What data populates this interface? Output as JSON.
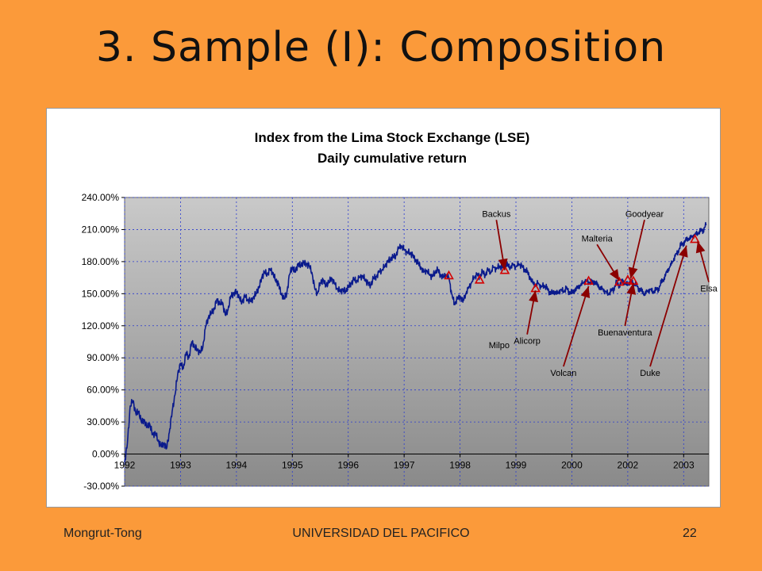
{
  "slide": {
    "title": "3. Sample (I): Composition",
    "footer_left": "Mongrut-Tong",
    "footer_center": "UNIVERSIDAD DEL PACIFICO",
    "footer_right": "22"
  },
  "colors": {
    "background": "#fb9a3a",
    "series": "#0a1a8c",
    "marker": "#d40000",
    "arrow": "#8b0000",
    "gridline": "#2a3ad0"
  },
  "chart_data": {
    "type": "line",
    "title": "Index from the Lima Stock Exchange (LSE)",
    "subtitle": "Daily cumulative return",
    "xlabel": "",
    "ylabel": "",
    "ylim": [
      -30,
      240
    ],
    "y_ticks": [
      -30,
      0,
      30,
      60,
      90,
      120,
      150,
      180,
      210,
      240
    ],
    "y_tick_labels": [
      "-30.00%",
      "0.00%",
      "30.00%",
      "60.00%",
      "90.00%",
      "120.00%",
      "150.00%",
      "180.00%",
      "210.00%",
      "240.00%"
    ],
    "x_tick_labels": [
      "1992",
      "1993",
      "1994",
      "1995",
      "1996",
      "1997",
      "1998",
      "1999",
      "2000",
      "2002",
      "2003"
    ],
    "grid": true,
    "series": [
      {
        "values": [
          [
            1992.0,
            -8
          ],
          [
            1992.05,
            10
          ],
          [
            1992.1,
            45
          ],
          [
            1992.15,
            50
          ],
          [
            1992.2,
            38
          ],
          [
            1992.25,
            40
          ],
          [
            1992.3,
            30
          ],
          [
            1992.35,
            32
          ],
          [
            1992.4,
            25
          ],
          [
            1992.45,
            28
          ],
          [
            1992.5,
            18
          ],
          [
            1992.55,
            20
          ],
          [
            1992.6,
            12
          ],
          [
            1992.65,
            8
          ],
          [
            1992.7,
            10
          ],
          [
            1992.75,
            5
          ],
          [
            1992.8,
            20
          ],
          [
            1992.85,
            40
          ],
          [
            1992.9,
            55
          ],
          [
            1992.95,
            75
          ],
          [
            1993.0,
            85
          ],
          [
            1993.05,
            80
          ],
          [
            1993.1,
            95
          ],
          [
            1993.15,
            90
          ],
          [
            1993.2,
            105
          ],
          [
            1993.25,
            100
          ],
          [
            1993.3,
            98
          ],
          [
            1993.35,
            95
          ],
          [
            1993.4,
            100
          ],
          [
            1993.45,
            120
          ],
          [
            1993.5,
            128
          ],
          [
            1993.55,
            132
          ],
          [
            1993.6,
            135
          ],
          [
            1993.65,
            145
          ],
          [
            1993.7,
            140
          ],
          [
            1993.75,
            142
          ],
          [
            1993.8,
            130
          ],
          [
            1993.85,
            135
          ],
          [
            1993.9,
            148
          ],
          [
            1993.95,
            150
          ],
          [
            1994.0,
            152
          ],
          [
            1994.05,
            146
          ],
          [
            1994.1,
            142
          ],
          [
            1994.15,
            148
          ],
          [
            1994.2,
            144
          ],
          [
            1994.25,
            143
          ],
          [
            1994.3,
            146
          ],
          [
            1994.35,
            150
          ],
          [
            1994.4,
            155
          ],
          [
            1994.45,
            165
          ],
          [
            1994.5,
            170
          ],
          [
            1994.55,
            168
          ],
          [
            1994.6,
            173
          ],
          [
            1994.65,
            170
          ],
          [
            1994.7,
            162
          ],
          [
            1994.75,
            160
          ],
          [
            1994.8,
            150
          ],
          [
            1994.85,
            145
          ],
          [
            1994.9,
            150
          ],
          [
            1994.95,
            168
          ],
          [
            1995.0,
            175
          ],
          [
            1995.05,
            170
          ],
          [
            1995.1,
            178
          ],
          [
            1995.15,
            176
          ],
          [
            1995.2,
            179
          ],
          [
            1995.25,
            178
          ],
          [
            1995.3,
            176
          ],
          [
            1995.35,
            170
          ],
          [
            1995.4,
            155
          ],
          [
            1995.45,
            150
          ],
          [
            1995.5,
            160
          ],
          [
            1995.55,
            163
          ],
          [
            1995.6,
            158
          ],
          [
            1995.65,
            160
          ],
          [
            1995.7,
            165
          ],
          [
            1995.75,
            160
          ],
          [
            1995.8,
            155
          ],
          [
            1995.85,
            152
          ],
          [
            1995.9,
            154
          ],
          [
            1995.95,
            152
          ],
          [
            1996.0,
            156
          ],
          [
            1996.05,
            160
          ],
          [
            1996.1,
            163
          ],
          [
            1996.15,
            162
          ],
          [
            1996.2,
            165
          ],
          [
            1996.25,
            167
          ],
          [
            1996.3,
            163
          ],
          [
            1996.35,
            160
          ],
          [
            1996.4,
            158
          ],
          [
            1996.45,
            164
          ],
          [
            1996.5,
            166
          ],
          [
            1996.55,
            170
          ],
          [
            1996.6,
            172
          ],
          [
            1996.65,
            175
          ],
          [
            1996.7,
            180
          ],
          [
            1996.75,
            182
          ],
          [
            1996.8,
            184
          ],
          [
            1996.85,
            186
          ],
          [
            1996.9,
            192
          ],
          [
            1996.95,
            195
          ],
          [
            1997.0,
            191
          ],
          [
            1997.05,
            189
          ],
          [
            1997.1,
            188
          ],
          [
            1997.15,
            186
          ],
          [
            1997.2,
            182
          ],
          [
            1997.25,
            178
          ],
          [
            1997.3,
            175
          ],
          [
            1997.35,
            170
          ],
          [
            1997.4,
            172
          ],
          [
            1997.45,
            168
          ],
          [
            1997.5,
            166
          ],
          [
            1997.55,
            170
          ],
          [
            1997.6,
            172
          ],
          [
            1997.65,
            168
          ],
          [
            1997.7,
            165
          ],
          [
            1997.75,
            168
          ],
          [
            1997.8,
            165
          ],
          [
            1997.85,
            150
          ],
          [
            1997.9,
            140
          ],
          [
            1997.95,
            145
          ],
          [
            1998.0,
            148
          ],
          [
            1998.05,
            142
          ],
          [
            1998.1,
            150
          ],
          [
            1998.15,
            155
          ],
          [
            1998.2,
            160
          ],
          [
            1998.25,
            165
          ],
          [
            1998.3,
            168
          ],
          [
            1998.35,
            166
          ],
          [
            1998.4,
            170
          ],
          [
            1998.45,
            168
          ],
          [
            1998.5,
            172
          ],
          [
            1998.55,
            170
          ],
          [
            1998.6,
            175
          ],
          [
            1998.65,
            173
          ],
          [
            1998.7,
            176
          ],
          [
            1998.75,
            174
          ],
          [
            1998.8,
            178
          ],
          [
            1998.85,
            176
          ],
          [
            1998.9,
            175
          ],
          [
            1998.95,
            177
          ],
          [
            1999.0,
            175
          ],
          [
            1999.05,
            178
          ],
          [
            1999.1,
            176
          ],
          [
            1999.15,
            173
          ],
          [
            1999.2,
            170
          ],
          [
            1999.25,
            166
          ],
          [
            1999.3,
            160
          ],
          [
            1999.35,
            158
          ],
          [
            1999.4,
            160
          ],
          [
            1999.45,
            156
          ],
          [
            1999.5,
            158
          ],
          [
            1999.55,
            155
          ],
          [
            1999.6,
            152
          ],
          [
            1999.65,
            150
          ],
          [
            1999.7,
            152
          ],
          [
            1999.75,
            150
          ],
          [
            1999.8,
            154
          ],
          [
            1999.85,
            152
          ],
          [
            1999.9,
            155
          ],
          [
            1999.95,
            152
          ],
          [
            2000.0,
            150
          ],
          [
            2000.05,
            154
          ],
          [
            2000.1,
            155
          ],
          [
            2000.15,
            158
          ],
          [
            2000.2,
            160
          ],
          [
            2000.25,
            162
          ],
          [
            2000.3,
            161
          ],
          [
            2000.35,
            160
          ],
          [
            2000.4,
            162
          ],
          [
            2000.45,
            158
          ],
          [
            2000.5,
            156
          ],
          [
            2000.55,
            154
          ],
          [
            2000.6,
            152
          ],
          [
            2000.65,
            150
          ],
          [
            2000.7,
            152
          ],
          [
            2000.75,
            155
          ],
          [
            2000.8,
            160
          ],
          [
            2000.85,
            158
          ],
          [
            2000.9,
            162
          ],
          [
            2000.95,
            160
          ],
          [
            2001.0,
            158
          ],
          [
            2001.05,
            162
          ],
          [
            2001.1,
            160
          ],
          [
            2001.15,
            158
          ],
          [
            2001.2,
            155
          ],
          [
            2001.25,
            152
          ],
          [
            2001.3,
            150
          ],
          [
            2001.35,
            152
          ],
          [
            2001.4,
            154
          ],
          [
            2001.45,
            152
          ],
          [
            2001.5,
            153
          ],
          [
            2001.55,
            155
          ],
          [
            2001.6,
            160
          ],
          [
            2001.65,
            165
          ],
          [
            2001.7,
            170
          ],
          [
            2001.75,
            175
          ],
          [
            2001.8,
            180
          ],
          [
            2001.85,
            185
          ],
          [
            2001.9,
            190
          ],
          [
            2001.95,
            195
          ],
          [
            2002.0,
            198
          ],
          [
            2002.05,
            200
          ],
          [
            2002.1,
            202
          ],
          [
            2002.15,
            203
          ],
          [
            2002.2,
            205
          ],
          [
            2002.25,
            207
          ],
          [
            2002.3,
            208
          ],
          [
            2002.35,
            210
          ],
          [
            2002.4,
            214
          ]
        ]
      }
    ],
    "markers": [
      {
        "x": 1997.8,
        "y": 167
      },
      {
        "x": 1998.35,
        "y": 163
      },
      {
        "x": 1998.8,
        "y": 172
      },
      {
        "x": 1999.35,
        "y": 155
      },
      {
        "x": 2000.3,
        "y": 162
      },
      {
        "x": 2000.85,
        "y": 161
      },
      {
        "x": 2001.0,
        "y": 163
      },
      {
        "x": 2001.1,
        "y": 162
      },
      {
        "x": 2002.2,
        "y": 201
      }
    ],
    "annotations": [
      {
        "label": "Backus",
        "x": 1998.65,
        "y": 222,
        "ax": 1998.8,
        "ay": 172
      },
      {
        "label": "Malteria",
        "x": 2000.45,
        "y": 199,
        "ax": 2000.85,
        "ay": 162
      },
      {
        "label": "Goodyear",
        "x": 2001.3,
        "y": 222,
        "ax": 2001.05,
        "ay": 164
      },
      {
        "label": "Milpo",
        "x": 1998.7,
        "y": 99,
        "ax": null,
        "ay": null
      },
      {
        "label": "Alicorp",
        "x": 1999.2,
        "y": 103,
        "ax": 1999.35,
        "ay": 153
      },
      {
        "label": "Buenaventura",
        "x": 2000.95,
        "y": 111,
        "ax": 2001.1,
        "ay": 160
      },
      {
        "label": "Volcan",
        "x": 1999.85,
        "y": 73,
        "ax": 2000.3,
        "ay": 157
      },
      {
        "label": "Duke",
        "x": 2001.4,
        "y": 73,
        "ax": 2002.05,
        "ay": 195
      },
      {
        "label": "Elsa",
        "x": 2002.45,
        "y": 152,
        "ax": 2002.25,
        "ay": 199
      }
    ]
  }
}
